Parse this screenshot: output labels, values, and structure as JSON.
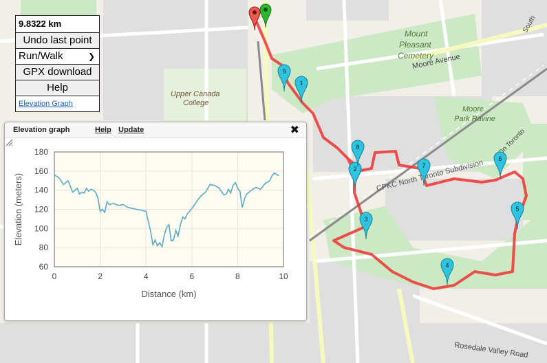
{
  "controls": {
    "distance": "9.8322 km",
    "undo_label": "Undo last point",
    "mode_value": "Run/Walk",
    "gpx_label": "GPX download",
    "help_label": "Help",
    "elevation_link": "Elevation Graph"
  },
  "map_labels": {
    "cemetery1": "Mount",
    "cemetery2": "Pleasant",
    "cemetery3": "Cemetery",
    "moore_ave": "Moore Avenue",
    "ucc1": "Upper Canada",
    "ucc2": "College",
    "ravine1": "Moore",
    "ravine2": "Park Ravine",
    "rail": "CPKC North Toronto Subdivision",
    "rosedale": "Rosedale Valley Road",
    "south": "South",
    "on_toronto": "On Toronto"
  },
  "markers": [
    "1",
    "2",
    "3",
    "4",
    "5",
    "6",
    "7",
    "8",
    "9"
  ],
  "elevation_panel": {
    "title": "Elevation graph",
    "help": "Help",
    "update": "Update"
  },
  "chart_data": {
    "type": "line",
    "xlabel": "Distance (km)",
    "ylabel": "Elevation (meters)",
    "xlim": [
      0,
      10
    ],
    "ylim": [
      60,
      180
    ],
    "xticks": [
      0,
      2,
      4,
      6,
      8,
      10
    ],
    "yticks": [
      60,
      80,
      100,
      120,
      140,
      160,
      180
    ],
    "grid": true,
    "color": "#5aa9c7",
    "series": [
      {
        "x": [
          0,
          0.2,
          0.4,
          0.6,
          0.8,
          1.0,
          1.1,
          1.2,
          1.3,
          1.4,
          1.5,
          1.6,
          1.7,
          1.8,
          1.9,
          2.0,
          2.1,
          2.2,
          2.3,
          2.4,
          2.6,
          2.8,
          3.0,
          3.2,
          3.4,
          3.6,
          3.8,
          4.0,
          4.2,
          4.3,
          4.4,
          4.5,
          4.6,
          4.7,
          4.8,
          4.9,
          5.0,
          5.1,
          5.2,
          5.3,
          5.4,
          5.5,
          5.6,
          5.7,
          5.8,
          5.9,
          6.0,
          6.1,
          6.2,
          6.4,
          6.6,
          6.8,
          7.0,
          7.2,
          7.4,
          7.5,
          7.6,
          7.7,
          7.8,
          7.9,
          8.0,
          8.1,
          8.2,
          8.3,
          8.4,
          8.5,
          8.6,
          8.8,
          9.0,
          9.2,
          9.4,
          9.5,
          9.6,
          9.8
        ],
        "y": [
          156,
          153,
          146,
          150,
          138,
          142,
          136,
          138,
          137,
          142,
          139,
          141,
          140,
          138,
          132,
          118,
          120,
          117,
          128,
          125,
          126,
          124,
          125,
          122,
          121,
          120,
          119,
          118,
          97,
          83,
          88,
          82,
          85,
          81,
          93,
          101,
          104,
          87,
          88,
          98,
          92,
          104,
          112,
          110,
          115,
          118,
          121,
          124,
          128,
          134,
          138,
          146,
          145,
          142,
          135,
          136,
          141,
          137,
          145,
          148,
          142,
          139,
          122,
          131,
          136,
          138,
          140,
          143,
          141,
          147,
          150,
          155,
          158,
          155
        ]
      }
    ]
  }
}
